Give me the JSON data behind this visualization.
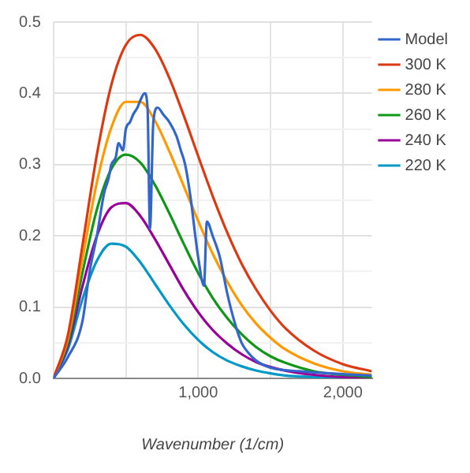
{
  "chart_data": {
    "type": "line",
    "xlabel": "Wavenumber (1/cm)",
    "x": [
      0,
      100,
      200,
      300,
      400,
      500,
      600,
      700,
      800,
      900,
      1000,
      1100,
      1200,
      1300,
      1400,
      1500,
      1600,
      1800,
      2000,
      2200
    ],
    "xlim": [
      0,
      2200
    ],
    "xticks": [
      {
        "value": 0,
        "label": null
      },
      {
        "value": 500,
        "label": null
      },
      {
        "value": 1000,
        "label": "1,000"
      },
      {
        "value": 1500,
        "label": null
      },
      {
        "value": 2000,
        "label": "2,000"
      }
    ],
    "ylim": [
      0,
      0.5
    ],
    "yticks": [
      {
        "value": 0,
        "label": "0.0"
      },
      {
        "value": 0.05,
        "label": null
      },
      0.1,
      {
        "value": 0.15,
        "label": null
      },
      0.2,
      {
        "value": 0.25,
        "label": null
      },
      0.3,
      {
        "value": 0.35,
        "label": null
      },
      0.4,
      {
        "value": 0.45,
        "label": null
      },
      0.5
    ],
    "grid": true,
    "legend": "right",
    "marker": "none",
    "line_style": "solid",
    "series": [
      {
        "name": "Model",
        "color": "#3366cc",
        "x": [
          0,
          100,
          200,
          250,
          300,
          350,
          380,
          400,
          430,
          450,
          480,
          500,
          530,
          550,
          580,
          600,
          630,
          650,
          667,
          690,
          720,
          760,
          800,
          850,
          880,
          910,
          950,
          980,
          1000,
          1040,
          1060,
          1100,
          1150,
          1200,
          1250,
          1300,
          1350,
          1400,
          1500,
          1700,
          2000,
          2200
        ],
        "values": [
          0,
          0.03,
          0.08,
          0.15,
          0.2,
          0.26,
          0.28,
          0.3,
          0.31,
          0.33,
          0.32,
          0.35,
          0.36,
          0.37,
          0.38,
          0.39,
          0.4,
          0.38,
          0.21,
          0.36,
          0.38,
          0.37,
          0.36,
          0.34,
          0.32,
          0.3,
          0.25,
          0.2,
          0.17,
          0.13,
          0.22,
          0.2,
          0.17,
          0.12,
          0.08,
          0.05,
          0.035,
          0.025,
          0.015,
          0.01,
          0.006,
          0.004
        ]
      },
      {
        "name": "300 K",
        "color": "#dc3912",
        "values": [
          0,
          0.061,
          0.186,
          0.314,
          0.412,
          0.468,
          0.482,
          0.463,
          0.422,
          0.369,
          0.312,
          0.256,
          0.205,
          0.161,
          0.125,
          0.095,
          0.071,
          0.039,
          0.02,
          0.01
        ]
      },
      {
        "name": "280 K",
        "color": "#ff9900",
        "values": [
          0,
          0.056,
          0.167,
          0.275,
          0.352,
          0.388,
          0.388,
          0.362,
          0.319,
          0.27,
          0.221,
          0.175,
          0.136,
          0.103,
          0.077,
          0.057,
          0.041,
          0.021,
          0.01,
          0.005
        ]
      },
      {
        "name": "260 K",
        "color": "#109618",
        "values": [
          0,
          0.051,
          0.148,
          0.237,
          0.294,
          0.314,
          0.303,
          0.272,
          0.232,
          0.189,
          0.148,
          0.113,
          0.085,
          0.062,
          0.044,
          0.031,
          0.022,
          0.01,
          0.005,
          0.002
        ]
      },
      {
        "name": "240 K",
        "color": "#990099",
        "values": [
          0,
          0.046,
          0.129,
          0.2,
          0.24,
          0.246,
          0.228,
          0.196,
          0.16,
          0.124,
          0.093,
          0.068,
          0.049,
          0.034,
          0.023,
          0.016,
          0.011,
          0.005,
          0.002,
          0.001
        ]
      },
      {
        "name": "220 K",
        "color": "#0099c6",
        "values": [
          0,
          0.041,
          0.111,
          0.165,
          0.189,
          0.185,
          0.163,
          0.133,
          0.103,
          0.076,
          0.054,
          0.037,
          0.025,
          0.017,
          0.011,
          0.007,
          0.004,
          0.002,
          0.001,
          0
        ]
      }
    ]
  }
}
